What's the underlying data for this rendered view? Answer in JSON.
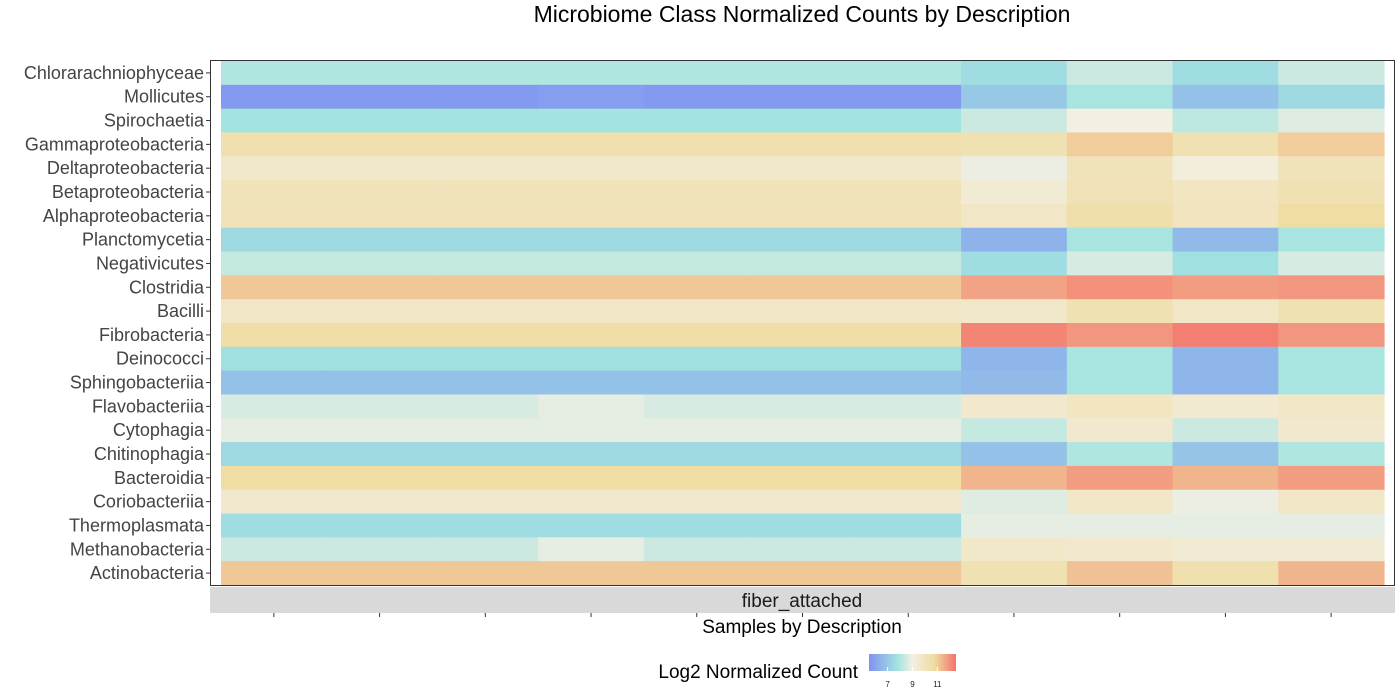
{
  "chart_data": {
    "type": "heatmap",
    "title": "Microbiome Class Normalized Counts by Description",
    "xlabel": "Samples by Description",
    "facet": "fiber_attached",
    "legend": {
      "title": "Log2 Normalized Count",
      "ticks": [
        7,
        9,
        11
      ],
      "range": [
        5.5,
        12.5
      ],
      "position": "bottom"
    },
    "colors": {
      "low": "#8093F1",
      "mid_low": "#A3E4E0",
      "mid": "#F3EFE3",
      "mid_high": "#EFDCA2",
      "high": "#F4736C"
    },
    "rows": [
      "Chlorarachniophyceae",
      "Mollicutes",
      "Spirochaetia",
      "Gammaproteobacteria",
      "Deltaproteobacteria",
      "Betaproteobacteria",
      "Alphaproteobacteria",
      "Planctomycetia",
      "Negativicutes",
      "Clostridia",
      "Bacilli",
      "Fibrobacteria",
      "Deinococci",
      "Sphingobacteriia",
      "Flavobacteriia",
      "Cytophagia",
      "Chitinophagia",
      "Bacteroidia",
      "Coriobacteriia",
      "Thermoplasmata",
      "Methanobacteria",
      "Actinobacteria"
    ],
    "n_columns": 11,
    "values": [
      [
        8.0,
        8.0,
        8.0,
        8.0,
        8.0,
        8.0,
        8.0,
        7.6,
        8.4,
        7.6,
        8.4
      ],
      [
        5.7,
        5.7,
        5.7,
        5.8,
        5.7,
        5.7,
        5.7,
        7.0,
        7.9,
        6.8,
        7.5
      ],
      [
        7.8,
        7.8,
        7.8,
        7.8,
        7.8,
        7.8,
        7.8,
        8.4,
        9.0,
        8.2,
        8.7
      ],
      [
        10.4,
        10.4,
        10.4,
        10.4,
        10.4,
        10.4,
        10.4,
        10.3,
        11.0,
        10.3,
        11.0
      ],
      [
        9.7,
        9.7,
        9.7,
        9.7,
        9.7,
        9.7,
        9.7,
        8.9,
        10.1,
        9.2,
        10.1
      ],
      [
        10.1,
        10.1,
        10.1,
        10.1,
        10.1,
        10.1,
        10.1,
        9.4,
        10.2,
        9.9,
        10.3
      ],
      [
        10.2,
        10.2,
        10.2,
        10.2,
        10.2,
        10.2,
        10.2,
        9.8,
        10.5,
        10.0,
        10.7
      ],
      [
        7.5,
        7.5,
        7.5,
        7.5,
        7.5,
        7.5,
        7.5,
        6.4,
        7.9,
        6.6,
        7.9
      ],
      [
        8.3,
        8.3,
        8.3,
        8.3,
        8.3,
        8.3,
        8.3,
        7.6,
        8.6,
        7.7,
        8.6
      ],
      [
        11.1,
        11.1,
        11.1,
        11.1,
        11.1,
        11.1,
        11.1,
        11.7,
        12.0,
        11.8,
        11.9
      ],
      [
        9.8,
        9.8,
        9.8,
        9.8,
        9.8,
        9.8,
        9.8,
        9.7,
        10.3,
        9.8,
        10.3
      ],
      [
        10.6,
        10.6,
        10.6,
        10.6,
        10.6,
        10.6,
        10.6,
        12.2,
        11.9,
        12.3,
        11.9
      ],
      [
        7.7,
        7.7,
        7.7,
        7.7,
        7.7,
        7.7,
        7.7,
        6.5,
        7.9,
        6.5,
        7.9
      ],
      [
        6.8,
        6.8,
        6.8,
        6.8,
        6.8,
        6.8,
        6.8,
        6.6,
        7.9,
        6.5,
        7.9
      ],
      [
        8.6,
        8.6,
        8.6,
        8.8,
        8.6,
        8.6,
        8.6,
        9.6,
        9.9,
        9.5,
        9.8
      ],
      [
        8.8,
        8.8,
        8.8,
        8.8,
        8.8,
        8.8,
        8.8,
        8.3,
        9.6,
        8.4,
        9.6
      ],
      [
        7.5,
        7.5,
        7.5,
        7.5,
        7.5,
        7.5,
        7.5,
        6.8,
        8.0,
        6.9,
        8.0
      ],
      [
        10.7,
        10.7,
        10.7,
        10.7,
        10.7,
        10.7,
        10.7,
        11.4,
        11.8,
        11.4,
        11.8
      ],
      [
        9.6,
        9.6,
        9.6,
        9.6,
        9.6,
        9.6,
        9.6,
        8.7,
        9.8,
        8.9,
        9.8
      ],
      [
        7.6,
        7.6,
        7.6,
        7.6,
        7.6,
        7.6,
        7.6,
        8.8,
        8.8,
        8.8,
        8.8
      ],
      [
        8.4,
        8.4,
        8.4,
        8.8,
        8.4,
        8.4,
        8.4,
        9.7,
        9.6,
        9.4,
        9.4
      ],
      [
        11.1,
        11.1,
        11.1,
        11.1,
        11.1,
        11.1,
        11.1,
        10.3,
        11.2,
        10.4,
        11.4
      ]
    ]
  }
}
